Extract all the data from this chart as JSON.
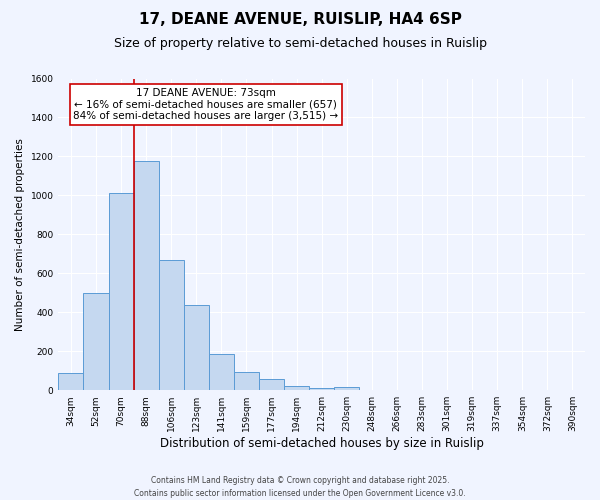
{
  "title": "17, DEANE AVENUE, RUISLIP, HA4 6SP",
  "subtitle": "Size of property relative to semi-detached houses in Ruislip",
  "xlabel": "Distribution of semi-detached houses by size in Ruislip",
  "ylabel": "Number of semi-detached properties",
  "bar_color": "#c5d8f0",
  "bar_edge_color": "#5b9bd5",
  "background_color": "#f0f4ff",
  "grid_color": "#ffffff",
  "categories": [
    "34sqm",
    "52sqm",
    "70sqm",
    "88sqm",
    "106sqm",
    "123sqm",
    "141sqm",
    "159sqm",
    "177sqm",
    "194sqm",
    "212sqm",
    "230sqm",
    "248sqm",
    "266sqm",
    "283sqm",
    "301sqm",
    "319sqm",
    "337sqm",
    "354sqm",
    "372sqm",
    "390sqm"
  ],
  "values": [
    90,
    500,
    1010,
    1175,
    670,
    435,
    185,
    95,
    55,
    20,
    10,
    15,
    0,
    0,
    0,
    0,
    0,
    0,
    0,
    0,
    0
  ],
  "ylim": [
    0,
    1600
  ],
  "yticks": [
    0,
    200,
    400,
    600,
    800,
    1000,
    1200,
    1400,
    1600
  ],
  "vline_x": 2,
  "vline_color": "#cc0000",
  "annotation_title": "17 DEANE AVENUE: 73sqm",
  "annotation_line1": "← 16% of semi-detached houses are smaller (657)",
  "annotation_line2": "84% of semi-detached houses are larger (3,515) →",
  "annotation_box_color": "#ffffff",
  "annotation_border_color": "#cc0000",
  "footer1": "Contains HM Land Registry data © Crown copyright and database right 2025.",
  "footer2": "Contains public sector information licensed under the Open Government Licence v3.0.",
  "title_fontsize": 11,
  "subtitle_fontsize": 9,
  "xlabel_fontsize": 8.5,
  "ylabel_fontsize": 7.5,
  "tick_fontsize": 6.5,
  "annotation_fontsize": 7.5,
  "footer_fontsize": 5.5
}
